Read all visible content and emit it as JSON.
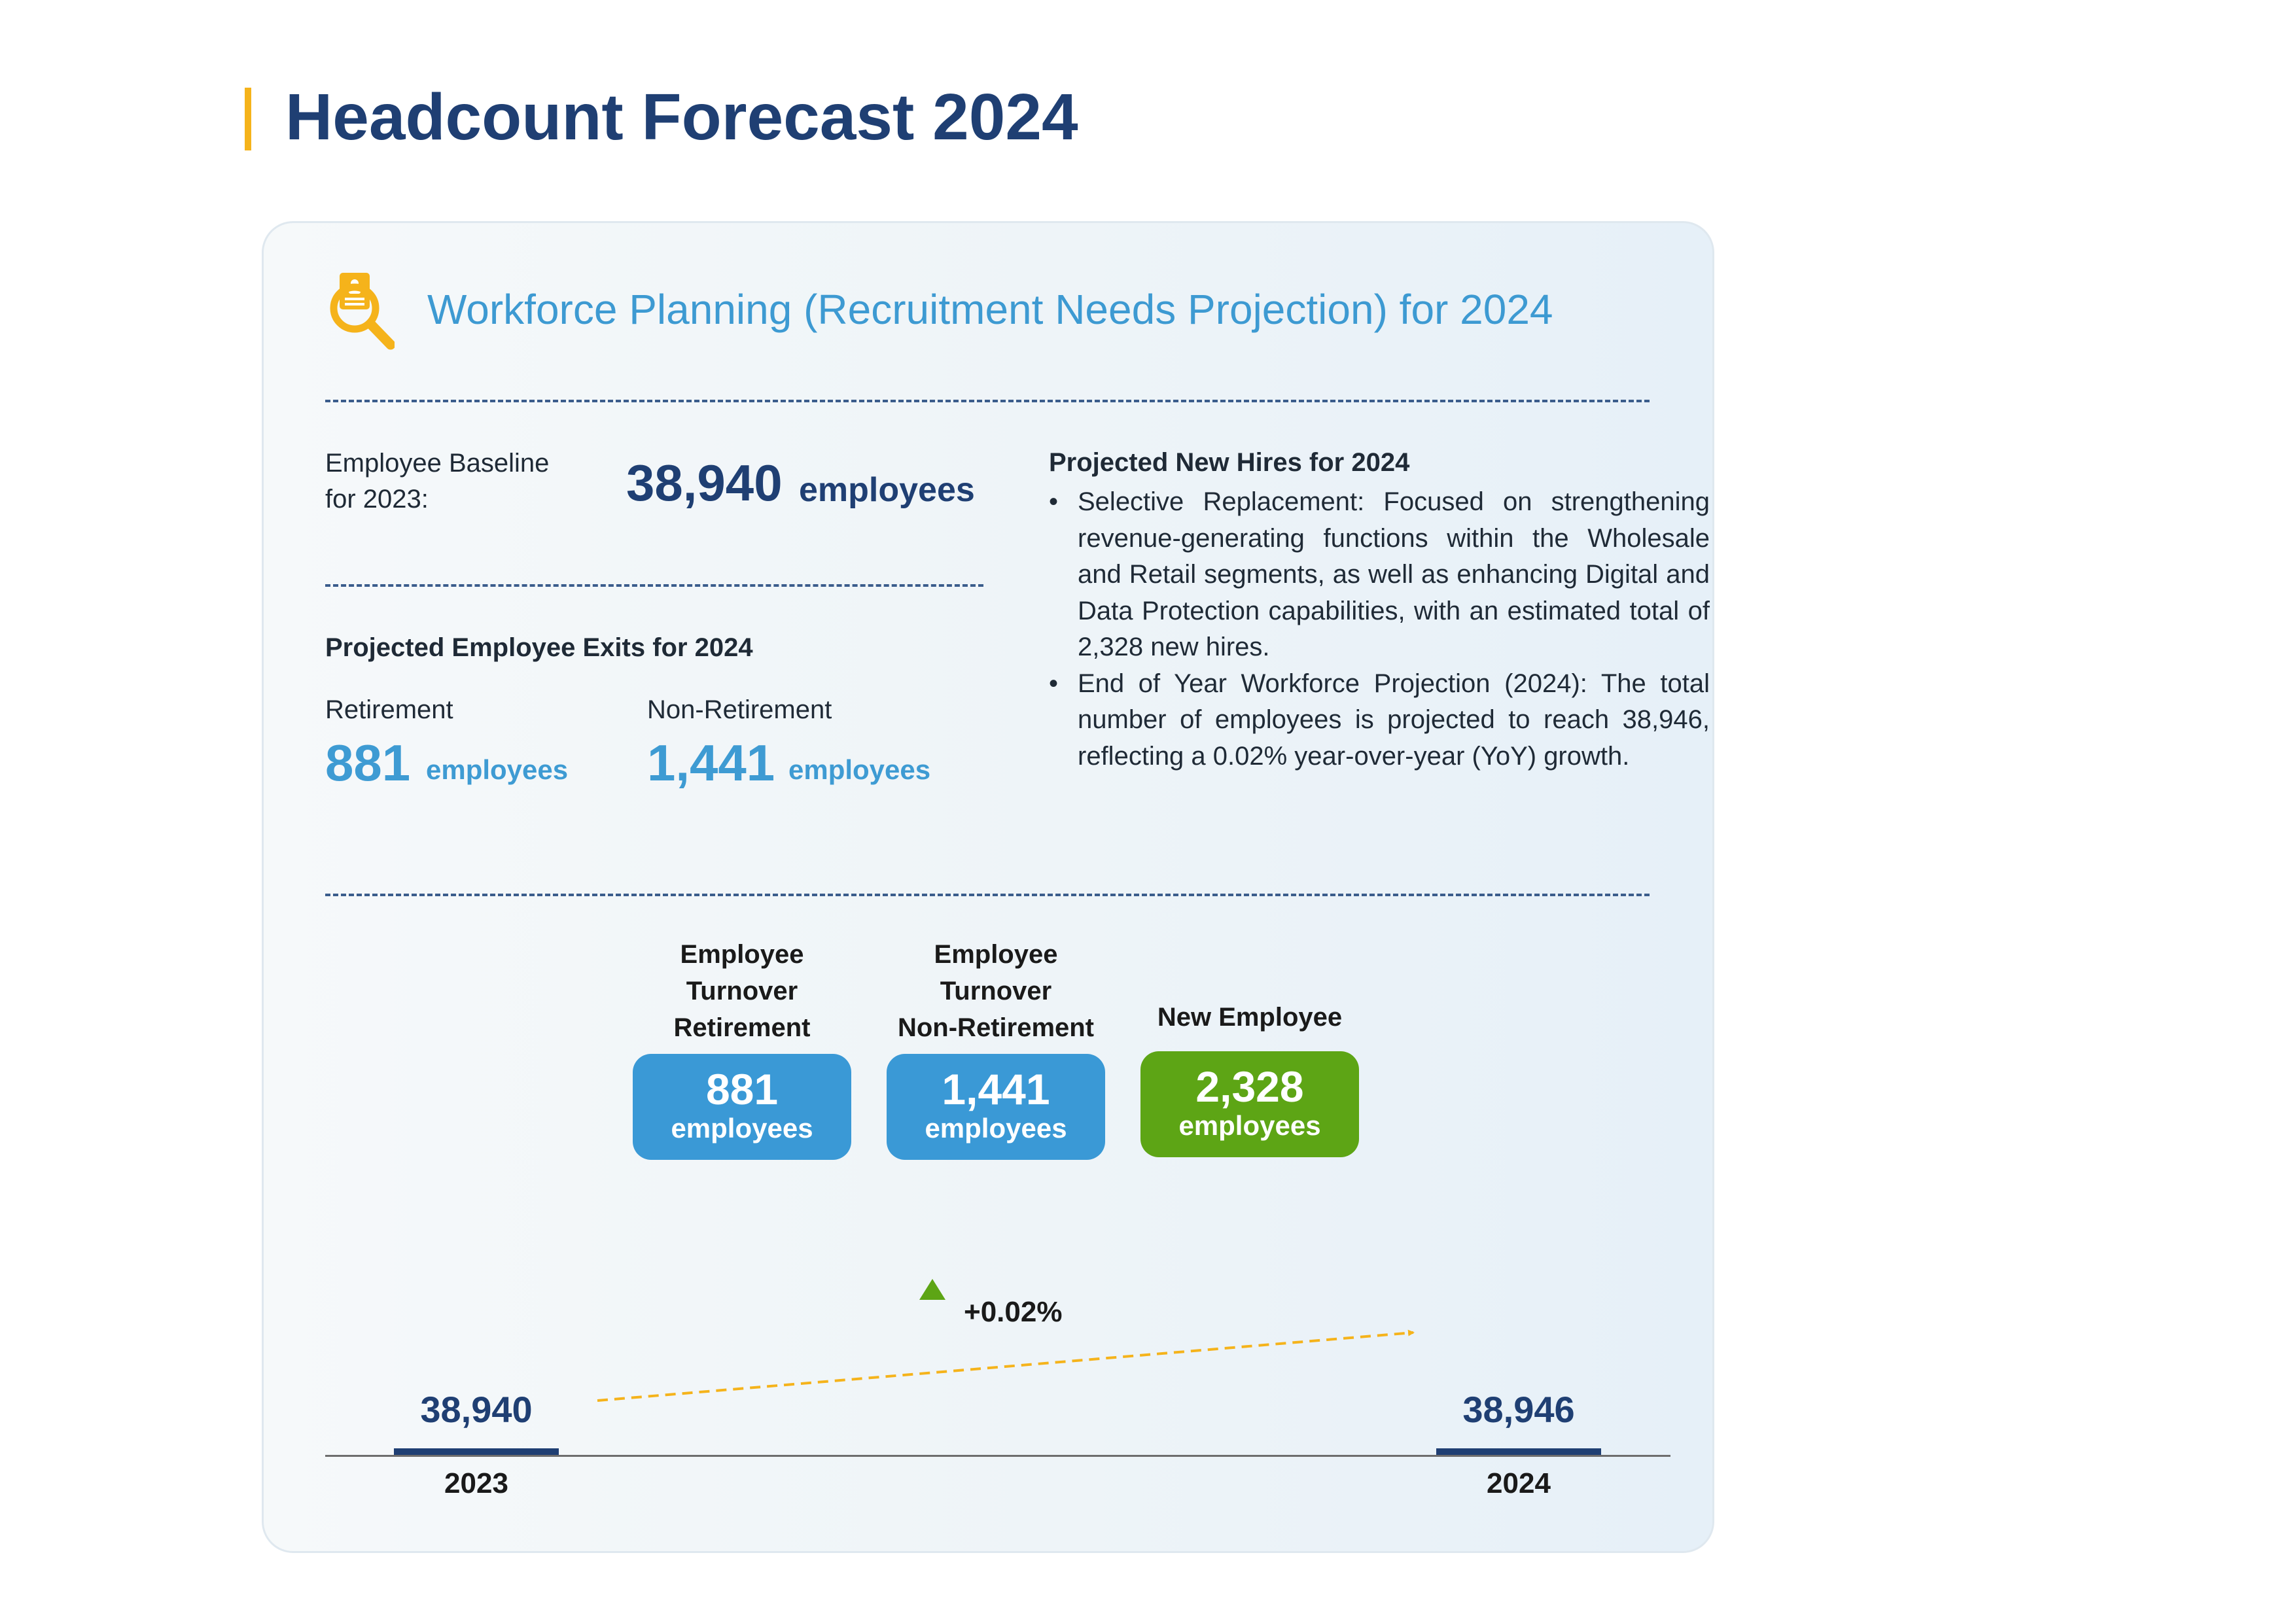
{
  "page": {
    "title": "Headcount Forecast 2024"
  },
  "card": {
    "title": "Workforce Planning (Recruitment Needs Projection) for 2024",
    "icon": "document-search-icon",
    "baseline": {
      "label_line1": "Employee Baseline",
      "label_line2": "for 2023:",
      "value": "38,940",
      "unit": "employees"
    },
    "exits": {
      "heading": "Projected Employee Exits for 2024",
      "retirement": {
        "label": "Retirement",
        "value": "881",
        "unit": "employees"
      },
      "non_retirement": {
        "label": "Non-Retirement",
        "value": "1,441",
        "unit": "employees"
      }
    },
    "new_hires": {
      "heading": "Projected New Hires for 2024",
      "bullets": [
        "Selective Replacement: Focused on strengthening revenue-generating functions within the Wholesale and Retail segments, as well as enhancing Digital and Data Protection capabilities, with an estimated total of 2,328 new hires.",
        "End of Year Workforce Projection (2024): The total number of employees is projected to reach 38,946, reflecting a 0.02% year-over-year (YoY) growth."
      ]
    }
  },
  "chart_data": {
    "type": "bar",
    "categories": [
      "2023",
      "2024"
    ],
    "values": [
      38940,
      38946
    ],
    "value_labels": [
      "38,940",
      "38,946"
    ],
    "growth_label": "+0.02%",
    "colors": {
      "bar": "#1f3f73",
      "turnover": "#3a99d6",
      "new": "#5da515",
      "arrow": "#f5b31b",
      "growth_marker": "#5da515"
    },
    "steps": [
      {
        "head": [
          "Employee",
          "Turnover",
          "Retirement"
        ],
        "value": "881",
        "unit": "employees",
        "kind": "turnover"
      },
      {
        "head": [
          "Employee",
          "Turnover",
          "Non-Retirement"
        ],
        "value": "1,441",
        "unit": "employees",
        "kind": "turnover"
      },
      {
        "head": [
          "New Employee"
        ],
        "value": "2,328",
        "unit": "employees",
        "kind": "new"
      }
    ]
  }
}
